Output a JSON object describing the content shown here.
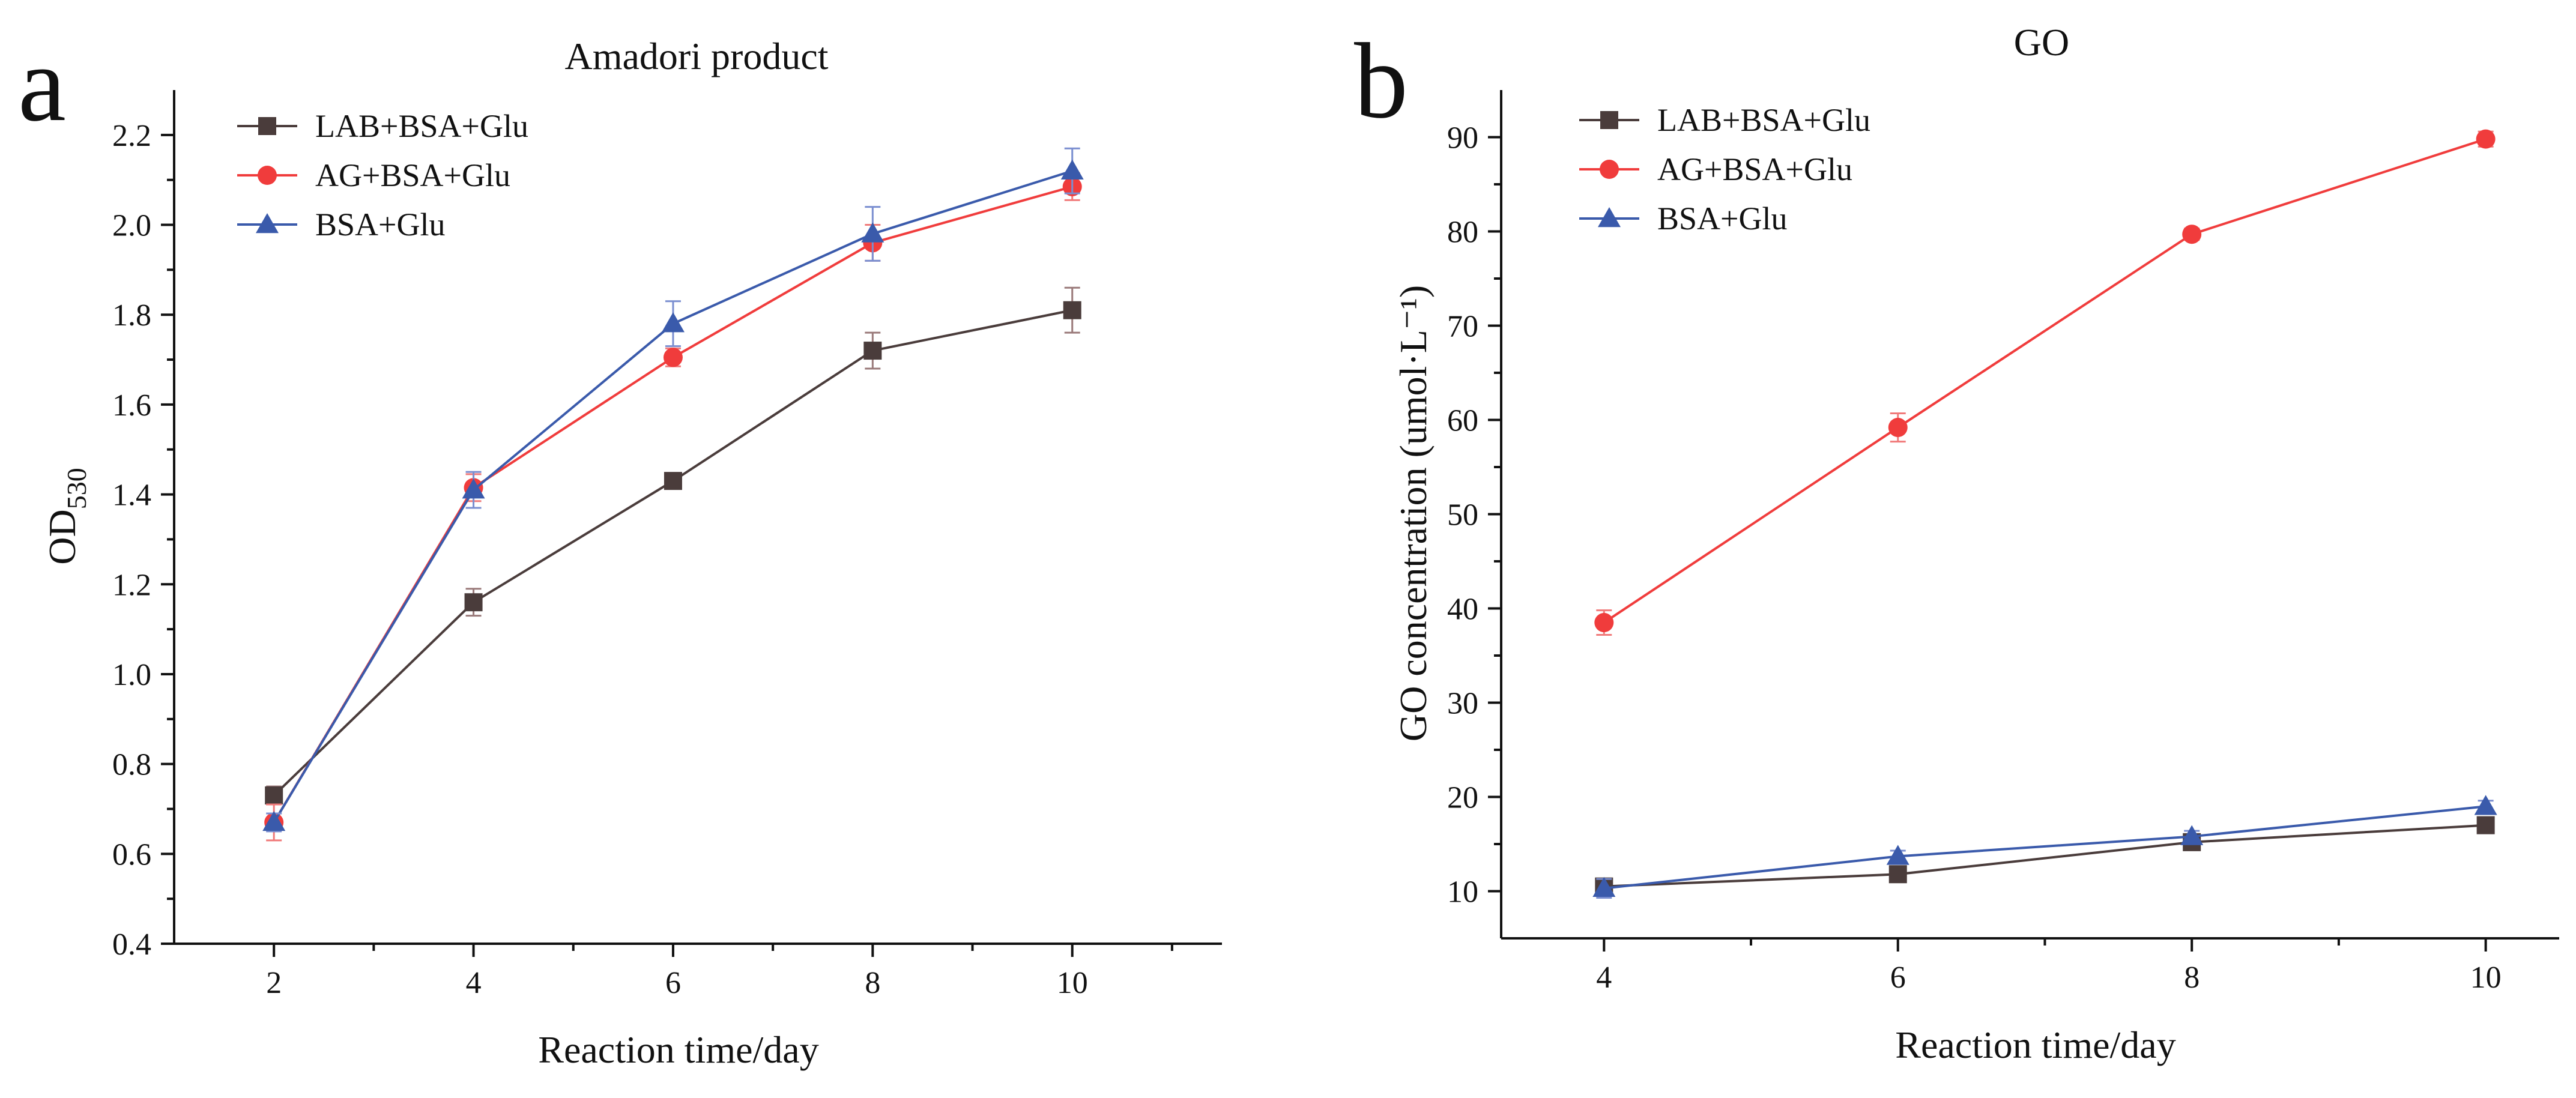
{
  "chart_data": [
    {
      "panel_letter": "a",
      "type": "line",
      "title": "Amadori product",
      "xlabel": "Reaction time/day",
      "ylabel_main": "OD",
      "ylabel_sub": "530",
      "xlim": [
        1,
        11.5
      ],
      "ylim": [
        0.4,
        2.3
      ],
      "x_ticks": [
        2,
        4,
        6,
        8,
        10
      ],
      "x_tick_labels": [
        "2",
        "4",
        "6",
        "8",
        "10"
      ],
      "y_ticks": [
        0.4,
        0.6,
        0.8,
        1.0,
        1.2,
        1.4,
        1.6,
        1.8,
        2.0,
        2.2
      ],
      "y_tick_labels": [
        "0.4",
        "0.6",
        "0.8",
        "1.0",
        "1.2",
        "1.4",
        "1.6",
        "1.8",
        "2.0",
        "2.2"
      ],
      "grid": false,
      "legend_position": "top-left",
      "series": [
        {
          "name": "LAB+BSA+Glu",
          "marker": "square",
          "color": "#4a3c3b",
          "error_color": "#9a7a7a",
          "x": [
            2,
            4,
            6,
            8,
            10
          ],
          "values": [
            0.73,
            1.16,
            1.43,
            1.72,
            1.81
          ],
          "errors": [
            0.02,
            0.03,
            0.015,
            0.04,
            0.05
          ]
        },
        {
          "name": "AG+BSA+Glu",
          "marker": "circle",
          "color": "#f03c3c",
          "error_color": "#f07a7a",
          "x": [
            2,
            4,
            6,
            8,
            10
          ],
          "values": [
            0.67,
            1.415,
            1.705,
            1.96,
            2.085
          ],
          "errors": [
            0.04,
            0.03,
            0.02,
            0.04,
            0.03
          ]
        },
        {
          "name": "BSA+Glu",
          "marker": "triangle",
          "color": "#3a5aab",
          "error_color": "#7a8ed0",
          "x": [
            2,
            4,
            6,
            8,
            10
          ],
          "values": [
            0.67,
            1.41,
            1.78,
            1.98,
            2.12
          ],
          "errors": [
            0.02,
            0.04,
            0.05,
            0.06,
            0.05
          ]
        }
      ]
    },
    {
      "panel_letter": "b",
      "type": "line",
      "title": "GO",
      "xlabel": "Reaction time/day",
      "ylabel": "GO concentration (umol·L⁻¹)",
      "xlim": [
        3.3,
        10.5
      ],
      "ylim": [
        5,
        95
      ],
      "x_ticks": [
        4,
        6,
        8,
        10
      ],
      "x_tick_labels": [
        "4",
        "6",
        "8",
        "10"
      ],
      "y_ticks": [
        10,
        20,
        30,
        40,
        50,
        60,
        70,
        80,
        90
      ],
      "y_tick_labels": [
        "10",
        "20",
        "30",
        "40",
        "50",
        "60",
        "70",
        "80",
        "90"
      ],
      "grid": false,
      "legend_position": "top-left",
      "series": [
        {
          "name": "LAB+BSA+Glu",
          "marker": "square",
          "color": "#4a3c3b",
          "error_color": "#9a7a7a",
          "x": [
            4,
            6,
            8,
            10
          ],
          "values": [
            10.5,
            11.8,
            15.2,
            17.0
          ],
          "errors": [
            0.5,
            0.6,
            0.6,
            0.6
          ]
        },
        {
          "name": "AG+BSA+Glu",
          "marker": "circle",
          "color": "#f03c3c",
          "error_color": "#f07a7a",
          "x": [
            4,
            6,
            8,
            10
          ],
          "values": [
            38.5,
            59.2,
            79.7,
            89.8
          ],
          "errors": [
            1.3,
            1.5,
            0.6,
            0.8
          ]
        },
        {
          "name": "BSA+Glu",
          "marker": "triangle",
          "color": "#3a5aab",
          "error_color": "#7a8ed0",
          "x": [
            4,
            6,
            8,
            10
          ],
          "values": [
            10.3,
            13.7,
            15.8,
            19.0
          ],
          "errors": [
            1.0,
            0.6,
            0.6,
            0.6
          ]
        }
      ]
    }
  ]
}
